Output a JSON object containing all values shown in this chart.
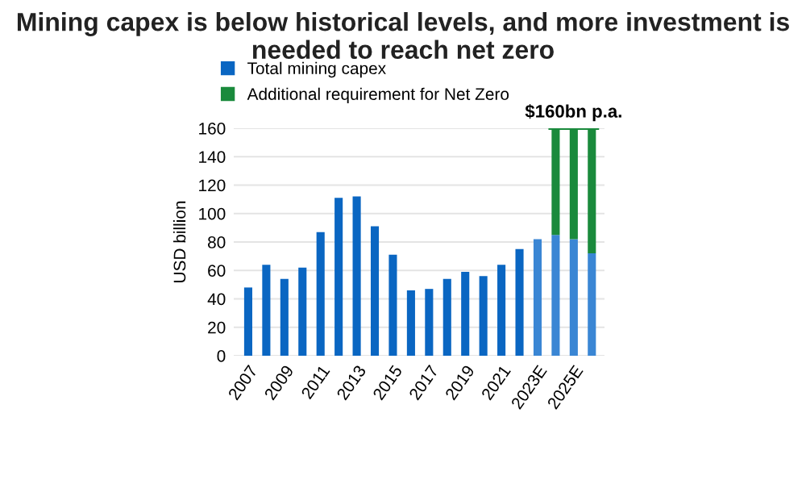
{
  "chart_data": {
    "type": "bar",
    "title": "Mining capex is below historical levels, and more investment is needed to reach net zero",
    "categories": [
      "2007",
      null,
      "2009",
      null,
      "2011",
      null,
      "2013",
      null,
      "2015",
      null,
      "2017",
      null,
      "2019",
      null,
      "2021",
      null,
      "2023E",
      null,
      "2025E",
      null
    ],
    "series": [
      {
        "name": "Total mining capex",
        "color": "#0a66c2",
        "colors": [
          "#0a66c2",
          "#0a66c2",
          "#0a66c2",
          "#0a66c2",
          "#0a66c2",
          "#0a66c2",
          "#0a66c2",
          "#0a66c2",
          "#0a66c2",
          "#0a66c2",
          "#0a66c2",
          "#0a66c2",
          "#0a66c2",
          "#0a66c2",
          "#0a66c2",
          "#0a66c2",
          "#3a86d4",
          "#3a86d4",
          "#3a86d4",
          "#3a86d4"
        ],
        "values": [
          48,
          64,
          54,
          62,
          87,
          111,
          112,
          91,
          71,
          46,
          47,
          54,
          59,
          56,
          64,
          75,
          82,
          85,
          82,
          72
        ]
      },
      {
        "name": "Additional requirement for Net Zero",
        "color": "#1a8a3c",
        "values": [
          null,
          null,
          null,
          null,
          null,
          null,
          null,
          null,
          null,
          null,
          null,
          null,
          null,
          null,
          null,
          null,
          null,
          75,
          78,
          88
        ]
      }
    ],
    "stacked": true,
    "ylabel": "USD billion",
    "ylim": [
      0,
      160
    ],
    "yticks": [
      0,
      20,
      40,
      60,
      80,
      100,
      120,
      140,
      160
    ],
    "grid": "y",
    "legend": "top",
    "ref_lines": [
      {
        "axis": "y",
        "value": 160,
        "label": "$160bn p.a.",
        "color": "#1a8a3c"
      }
    ]
  }
}
